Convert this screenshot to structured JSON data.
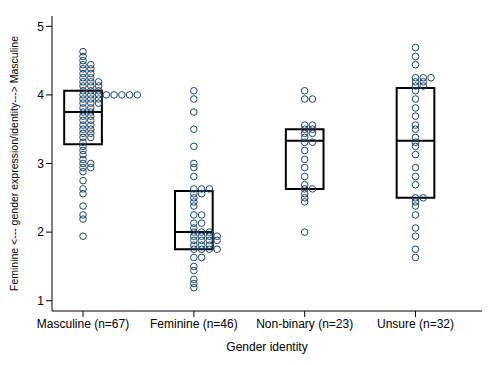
{
  "chart_data": {
    "type": "box",
    "categories": [
      "Masculine (n=67)",
      "Feminine (n=46)",
      "Non-binary (n=23)",
      "Unsure (n=32)"
    ],
    "x_label": "Gender identity",
    "y_label": "Feminine <--- gender expression/identity---> Masculine",
    "ylim": [
      0.85,
      5.15
    ],
    "yticks": [
      1,
      2,
      3,
      4,
      5
    ],
    "grid": false,
    "color": "#1a476f",
    "marker": "hollow circle",
    "boxes": [
      {
        "q1": 3.28,
        "median": 3.75,
        "q3": 4.06
      },
      {
        "q1": 1.75,
        "median": 2.0,
        "q3": 2.6
      },
      {
        "q1": 2.63,
        "median": 3.33,
        "q3": 3.5
      },
      {
        "q1": 2.5,
        "median": 3.33,
        "q3": 4.1
      }
    ],
    "points": [
      [
        4.63,
        4.56,
        4.5,
        4.44,
        4.44,
        4.38,
        4.38,
        4.31,
        4.31,
        4.25,
        4.25,
        4.19,
        4.19,
        4.19,
        4.13,
        4.13,
        4.13,
        4.06,
        4.06,
        4.06,
        4.0,
        4.0,
        4.0,
        4.0,
        4.0,
        4.0,
        4.0,
        4.0,
        3.94,
        3.94,
        3.94,
        3.88,
        3.88,
        3.88,
        3.81,
        3.81,
        3.75,
        3.75,
        3.69,
        3.69,
        3.63,
        3.63,
        3.56,
        3.56,
        3.5,
        3.5,
        3.44,
        3.44,
        3.38,
        3.38,
        3.31,
        3.25,
        3.19,
        3.13,
        3.06,
        3.0,
        3.0,
        2.94,
        2.94,
        2.88,
        2.75,
        2.63,
        2.56,
        2.38,
        2.25,
        2.19,
        1.94
      ],
      [
        4.06,
        3.94,
        3.75,
        3.5,
        3.25,
        3.0,
        2.94,
        2.81,
        2.63,
        2.63,
        2.63,
        2.56,
        2.56,
        2.5,
        2.44,
        2.38,
        2.25,
        2.25,
        2.13,
        2.13,
        2.06,
        2.0,
        2.0,
        2.0,
        1.94,
        1.94,
        1.94,
        1.94,
        1.88,
        1.88,
        1.88,
        1.88,
        1.81,
        1.81,
        1.81,
        1.75,
        1.75,
        1.75,
        1.75,
        1.63,
        1.63,
        1.5,
        1.44,
        1.31,
        1.25,
        1.19
      ],
      [
        4.06,
        3.94,
        3.94,
        3.56,
        3.56,
        3.5,
        3.5,
        3.44,
        3.44,
        3.38,
        3.31,
        3.31,
        3.19,
        3.06,
        2.94,
        2.81,
        2.69,
        2.63,
        2.63,
        2.56,
        2.5,
        2.44,
        2.0
      ],
      [
        4.69,
        4.56,
        4.44,
        4.25,
        4.25,
        4.25,
        4.19,
        4.19,
        4.13,
        4.13,
        4.06,
        3.94,
        3.81,
        3.69,
        3.56,
        3.5,
        3.38,
        3.31,
        3.25,
        3.13,
        2.94,
        2.81,
        2.69,
        2.5,
        2.5,
        2.44,
        2.38,
        2.25,
        2.06,
        1.94,
        1.75,
        1.63
      ]
    ]
  }
}
